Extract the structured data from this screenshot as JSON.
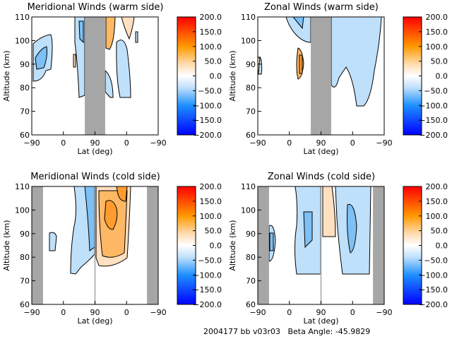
{
  "chart_data": [
    {
      "type": "heatmap",
      "title": "Meridional Winds (warm side)",
      "xlabel": "Lat (deg)",
      "ylabel": "Altitude (km)",
      "xticks": [
        "-90",
        "0",
        "90",
        "0",
        "-90"
      ],
      "yticks": [
        "60",
        "70",
        "80",
        "90",
        "100",
        "110"
      ],
      "ylim": [
        60,
        110
      ],
      "no_data_orbit_ranges": [
        [
          151,
          209
        ]
      ],
      "colorbar": {
        "ticks": [
          "200.0",
          "150.0",
          "100.0",
          "50.0",
          "0.0",
          "-50.0",
          "-100.0",
          "-150.0",
          "-200.0"
        ],
        "range": [
          -200,
          200
        ]
      }
    },
    {
      "type": "heatmap",
      "title": "Zonal Winds (warm side)",
      "xlabel": "Lat (deg)",
      "ylabel": "Altitude (km)",
      "xticks": [
        "-90",
        "0",
        "90",
        "0",
        "-90"
      ],
      "yticks": [
        "60",
        "70",
        "80",
        "90",
        "100",
        "110"
      ],
      "ylim": [
        60,
        110
      ],
      "no_data_orbit_ranges": [
        [
          151,
          209
        ]
      ],
      "colorbar": {
        "ticks": [
          "200.0",
          "150.0",
          "100.0",
          "50.0",
          "0.0",
          "-50.0",
          "-100.0",
          "-150.0",
          "-200.0"
        ],
        "range": [
          -200,
          200
        ]
      }
    },
    {
      "type": "heatmap",
      "title": "Meridional Winds (cold side)",
      "xlabel": "Lat (deg)",
      "ylabel": "Altitude (km)",
      "xticks": [
        "-90",
        "0",
        "90",
        "0",
        "-90"
      ],
      "yticks": [
        "60",
        "70",
        "80",
        "90",
        "100",
        "110"
      ],
      "ylim": [
        60,
        110
      ],
      "no_data_orbit_ranges": [
        [
          0,
          32
        ],
        [
          328,
          360
        ]
      ],
      "colorbar": {
        "ticks": [
          "200.0",
          "150.0",
          "100.0",
          "50.0",
          "0.0",
          "-50.0",
          "-100.0",
          "-150.0",
          "-200.0"
        ],
        "range": [
          -200,
          200
        ]
      }
    },
    {
      "type": "heatmap",
      "title": "Zonal Winds (cold side)",
      "xlabel": "Lat (deg)",
      "ylabel": "Altitude (km)",
      "xticks": [
        "-90",
        "0",
        "90",
        "0",
        "-90"
      ],
      "yticks": [
        "60",
        "70",
        "80",
        "90",
        "100",
        "110"
      ],
      "ylim": [
        60,
        110
      ],
      "no_data_orbit_ranges": [
        [
          0,
          32
        ],
        [
          328,
          360
        ]
      ],
      "colorbar": {
        "ticks": [
          "200.0",
          "150.0",
          "100.0",
          "50.0",
          "0.0",
          "-50.0",
          "-100.0",
          "-150.0",
          "-200.0"
        ],
        "range": [
          -200,
          200
        ]
      }
    }
  ],
  "footer": "2004177 bb v03r03   Beta Angle: -45.9829"
}
